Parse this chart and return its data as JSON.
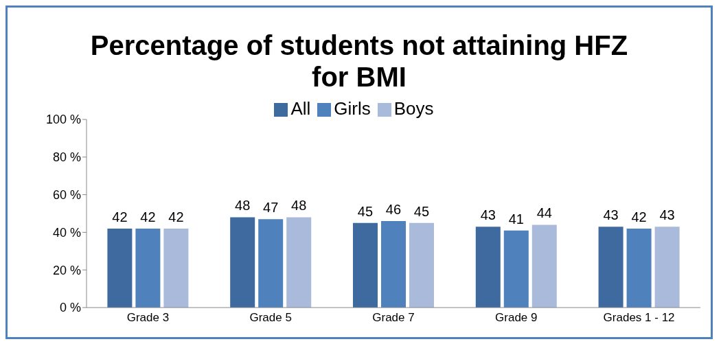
{
  "chart_data": {
    "type": "bar",
    "title": "Percentage of students not attaining HFZ for BMI",
    "categories": [
      "Grade 3",
      "Grade 5",
      "Grade 7",
      "Grade 9",
      "Grades 1 - 12"
    ],
    "series": [
      {
        "name": "All",
        "color": "#3f6a9f",
        "values": [
          42,
          48,
          45,
          43,
          43
        ]
      },
      {
        "name": "Girls",
        "color": "#4f81bd",
        "values": [
          42,
          47,
          46,
          41,
          42
        ]
      },
      {
        "name": "Boys",
        "color": "#a9badb",
        "values": [
          42,
          48,
          45,
          44,
          43
        ]
      }
    ],
    "ylim": [
      0,
      100
    ],
    "yticks": [
      {
        "value": 0,
        "label": "0 %"
      },
      {
        "value": 20,
        "label": "20 %"
      },
      {
        "value": 40,
        "label": "40 %"
      },
      {
        "value": 60,
        "label": "60 %"
      },
      {
        "value": 80,
        "label": "80 %"
      },
      {
        "value": 100,
        "label": "100 %"
      }
    ],
    "grid": false,
    "legend": "top",
    "data_labels": true
  }
}
